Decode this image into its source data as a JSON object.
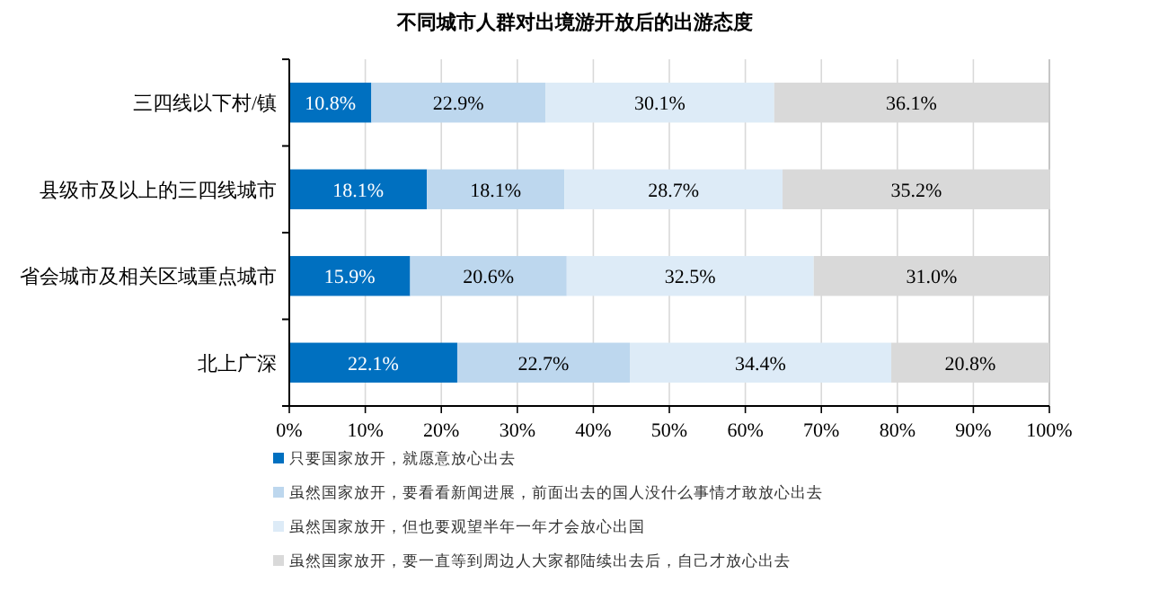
{
  "chart_data": {
    "type": "bar",
    "orientation": "horizontal",
    "stacked": true,
    "title": "不同城市人群对出境游开放后的出游态度",
    "categories": [
      "三四线以下村/镇",
      "县级市及以上的三四线城市",
      "省会城市及相关区域重点城市",
      "北上广深"
    ],
    "series": [
      {
        "name": "只要国家放开，就愿意放心出去",
        "color": "#0070c0",
        "values": [
          10.8,
          18.1,
          15.9,
          22.1
        ],
        "value_labels": [
          "10.8%",
          "18.1%",
          "15.9%",
          "22.1%"
        ]
      },
      {
        "name": "虽然国家放开，要看看新闻进展，前面出去的国人没什么事情才敢放心出去",
        "color": "#bdd7ee",
        "values": [
          22.9,
          18.1,
          20.6,
          22.7
        ],
        "value_labels": [
          "22.9%",
          "18.1%",
          "20.6%",
          "22.7%"
        ]
      },
      {
        "name": "虽然国家放开，但也要观望半年一年才会放心出国",
        "color": "#ddebf7",
        "values": [
          30.1,
          28.7,
          32.5,
          34.4
        ],
        "value_labels": [
          "30.1%",
          "28.7%",
          "32.5%",
          "34.4%"
        ]
      },
      {
        "name": "虽然国家放开，要一直等到周边人大家都陆续出去后，自己才放心出去",
        "color": "#d9d9d9",
        "values": [
          36.1,
          35.2,
          31.0,
          20.8
        ],
        "value_labels": [
          "36.1%",
          "35.2%",
          "31.0%",
          "20.8%"
        ]
      }
    ],
    "xlim": [
      0,
      100
    ],
    "xticks": [
      {
        "value": 0,
        "label": "0%"
      },
      {
        "value": 10,
        "label": "10%"
      },
      {
        "value": 20,
        "label": "20%"
      },
      {
        "value": 30,
        "label": "30%"
      },
      {
        "value": 40,
        "label": "40%"
      },
      {
        "value": 50,
        "label": "50%"
      },
      {
        "value": 60,
        "label": "60%"
      },
      {
        "value": 70,
        "label": "70%"
      },
      {
        "value": 80,
        "label": "80%"
      },
      {
        "value": 90,
        "label": "90%"
      },
      {
        "value": 100,
        "label": "100%"
      }
    ],
    "grid": "x",
    "legend": "bottom"
  }
}
